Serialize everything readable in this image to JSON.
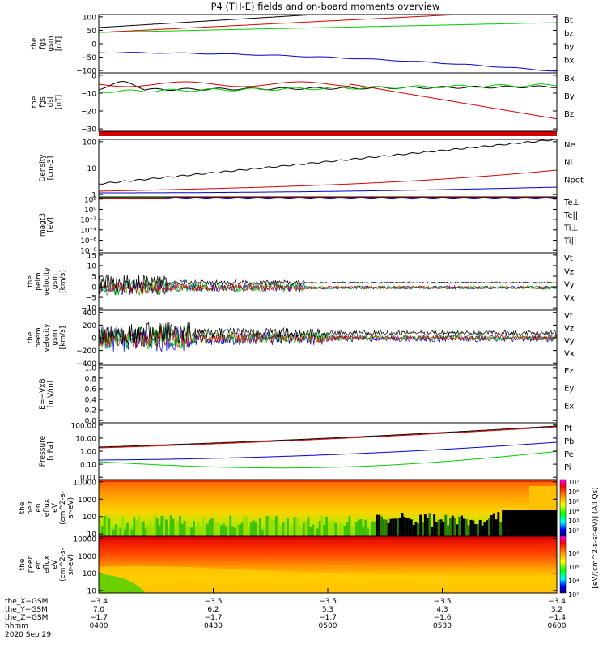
{
  "title": "P4 (TH-E) fields and on-board moments overview",
  "colors": {
    "black": "#000000",
    "red": "#d40000",
    "green": "#00cc00",
    "blue": "#0000d0"
  },
  "panels": [
    {
      "id": "p1",
      "ylabel": [
        "the",
        "fgs",
        "gsm",
        "[nT]"
      ],
      "ticks": [
        "100",
        "50",
        "0",
        "−50",
        "−100"
      ],
      "legend": [
        {
          "label": "Bt",
          "color": "#000000"
        },
        {
          "label": "bz",
          "color": "#d40000"
        },
        {
          "label": "by",
          "color": "#00cc00"
        },
        {
          "label": "bx",
          "color": "#0000d0"
        }
      ]
    },
    {
      "id": "p2",
      "ylabel": [
        "the",
        "fgs",
        "dsl",
        "[nT]"
      ],
      "ticks": [
        "0",
        "−10",
        "−20",
        "−30"
      ],
      "legend": [
        {
          "label": "Bx",
          "color": "#000000"
        },
        {
          "label": "By",
          "color": "#00cc00"
        },
        {
          "label": "Bz",
          "color": "#d40000"
        }
      ]
    },
    {
      "id": "p3",
      "ylabel": [
        "Density",
        "[cm-3]"
      ],
      "ticks": [
        "100",
        "10",
        "1"
      ],
      "legend": [
        {
          "label": "Ne",
          "color": "#d40000"
        },
        {
          "label": "Ni",
          "color": "#000000"
        },
        {
          "label": "Npot",
          "color": "#0000d0"
        }
      ]
    },
    {
      "id": "p4",
      "ylabel": [
        "magt3",
        "[eV]"
      ],
      "ticks": [
        "10²",
        "10⁰",
        "10⁻²",
        "10⁻⁴",
        "10⁻⁶",
        "10⁻⁸"
      ],
      "legend": [
        {
          "label": "Te⊥",
          "color": "#d40000"
        },
        {
          "label": "Te||",
          "color": "#000000"
        },
        {
          "label": "Ti⊥",
          "color": "#0000d0"
        },
        {
          "label": "Ti||",
          "color": "#00cc00"
        }
      ]
    },
    {
      "id": "p5",
      "ylabel": [
        "the",
        "peim",
        "velocity",
        "gsm",
        "[km/s]"
      ],
      "ticks": [
        "15",
        "10",
        "5",
        "0",
        "−5",
        "−10"
      ],
      "legend": [
        {
          "label": "Vt",
          "color": "#000000"
        },
        {
          "label": "Vz",
          "color": "#d40000"
        },
        {
          "label": "Vy",
          "color": "#00cc00"
        },
        {
          "label": "Vx",
          "color": "#0000d0"
        }
      ]
    },
    {
      "id": "p6",
      "ylabel": [
        "the",
        "peem",
        "velocity",
        "gsm",
        "[km/s]"
      ],
      "ticks": [
        "400",
        "200",
        "0",
        "−200",
        "−400"
      ],
      "legend": [
        {
          "label": "Vt",
          "color": "#000000"
        },
        {
          "label": "Vz",
          "color": "#d40000"
        },
        {
          "label": "Vy",
          "color": "#00cc00"
        },
        {
          "label": "Vx",
          "color": "#0000d0"
        }
      ]
    },
    {
      "id": "p7",
      "ylabel": [
        "E=−VxB",
        "[mV/m]"
      ],
      "ticks": [
        "1.0",
        "0.8",
        "0.6",
        "0.4",
        "0.2",
        "0.0"
      ],
      "legend": [
        {
          "label": "Ez",
          "color": "#d40000"
        },
        {
          "label": "Ey",
          "color": "#00cc00"
        },
        {
          "label": "Ex",
          "color": "#0000d0"
        }
      ]
    },
    {
      "id": "p8",
      "ylabel": [
        "Pressure",
        "[nPa]"
      ],
      "ticks": [
        "100.00",
        "10.00",
        "1.00",
        "0.10",
        "0.01"
      ],
      "legend": [
        {
          "label": "Pt",
          "color": "#000000"
        },
        {
          "label": "Pb",
          "color": "#d40000"
        },
        {
          "label": "Pe",
          "color": "#00cc00"
        },
        {
          "label": "Pi",
          "color": "#0000d0"
        }
      ]
    },
    {
      "id": "p9",
      "ylabel": [
        "the",
        "peir",
        "en",
        "eflux",
        "eV",
        "(cm^2-s-",
        "sr-eV)"
      ],
      "ticks": [
        "10000",
        "1000",
        "100",
        "10"
      ]
    },
    {
      "id": "p10",
      "ylabel": [
        "the",
        "peer",
        "en",
        "eflux",
        "eV",
        "(cm^2-s-",
        "sr-eV)"
      ],
      "ticks": [
        "10000",
        "1000",
        "100",
        "10"
      ]
    }
  ],
  "colorbar1": {
    "ticks": [
      "10⁷",
      "10⁶",
      "10⁵",
      "10⁴",
      "10³",
      "10²"
    ],
    "label": "[eV/(cm^2-s-sr-eV)] (All Qs)"
  },
  "colorbar2": {
    "ticks": [
      "10⁸",
      "10⁶",
      "10⁴",
      "10²"
    ]
  },
  "xaxis": {
    "rows": [
      {
        "label": "the_X−GSM",
        "values": [
          "−3.4",
          "−3.5",
          "−3.5",
          "−3.5",
          "−3.4"
        ]
      },
      {
        "label": "the_Y−GSM",
        "values": [
          "7.0",
          "6.2",
          "5.3",
          "4.3",
          "3.2"
        ]
      },
      {
        "label": "the_Z−GSM",
        "values": [
          "−1.7",
          "−1.7",
          "−1.7",
          "−1.6",
          "−1.4"
        ]
      },
      {
        "label": "hhmm",
        "values": [
          "0400",
          "0430",
          "0500",
          "0530",
          "0600"
        ]
      }
    ],
    "date": "2020 Sep 29"
  },
  "chart_data": {
    "type": "line",
    "x": [
      "0400",
      "0430",
      "0500",
      "0530",
      "0600"
    ],
    "series": [
      {
        "panel": "fgs gsm",
        "name": "Bt",
        "values": [
          62,
          75,
          88,
          100,
          112
        ]
      },
      {
        "panel": "fgs gsm",
        "name": "bz",
        "values": [
          40,
          60,
          78,
          96,
          112
        ]
      },
      {
        "panel": "fgs gsm",
        "name": "by",
        "values": [
          38,
          46,
          56,
          66,
          78
        ]
      },
      {
        "panel": "fgs gsm",
        "name": "bx",
        "values": [
          -33,
          -43,
          -55,
          -75,
          -100
        ]
      },
      {
        "panel": "fgs dsl",
        "name": "Bx",
        "values": [
          -4,
          -2,
          -2,
          -1,
          4
        ]
      },
      {
        "panel": "fgs dsl",
        "name": "By",
        "values": [
          -3,
          -2,
          -1,
          0,
          3
        ]
      },
      {
        "panel": "fgs dsl",
        "name": "Bz",
        "values": [
          -2,
          2,
          2,
          -14,
          -30
        ]
      },
      {
        "panel": "Density",
        "name": "Ni",
        "values": [
          1,
          3,
          10,
          40,
          160
        ]
      },
      {
        "panel": "Density",
        "name": "Ne",
        "values": [
          0.55,
          0.7,
          1,
          2,
          6
        ]
      },
      {
        "panel": "Density",
        "name": "Npot",
        "values": [
          0.4,
          0.45,
          0.5,
          0.6,
          0.9
        ]
      },
      {
        "panel": "Pressure",
        "name": "Pt",
        "values": [
          1.6,
          2.5,
          4,
          8,
          25
        ]
      },
      {
        "panel": "Pressure",
        "name": "Pb",
        "values": [
          1.5,
          2.4,
          3.9,
          7.5,
          22
        ]
      },
      {
        "panel": "Pressure",
        "name": "Pi",
        "values": [
          0.25,
          0.45,
          0.8,
          2,
          8
        ]
      },
      {
        "panel": "Pressure",
        "name": "Pe",
        "values": [
          0.2,
          0.1,
          0.07,
          0.12,
          0.5
        ]
      }
    ]
  }
}
